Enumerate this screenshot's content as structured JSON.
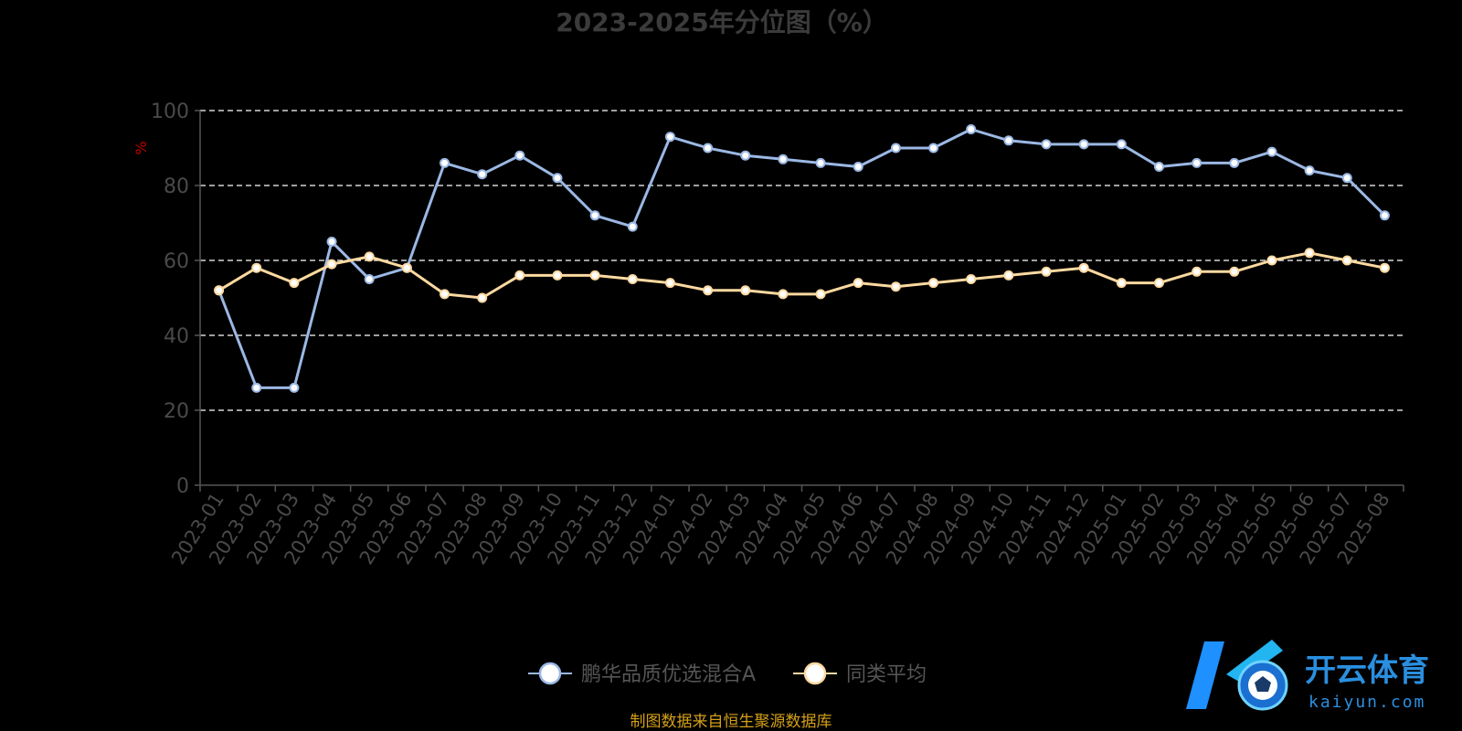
{
  "chart_data": {
    "type": "line",
    "title": "2023-2025年分位图（%）",
    "ylabel": "%",
    "xlabel": "",
    "ylim": [
      0,
      100
    ],
    "yticks": [
      0,
      20,
      40,
      60,
      80,
      100
    ],
    "grid": true,
    "legend_position": "bottom-center",
    "categories": [
      "2023-01",
      "2023-02",
      "2023-03",
      "2023-04",
      "2023-05",
      "2023-06",
      "2023-07",
      "2023-08",
      "2023-09",
      "2023-10",
      "2023-11",
      "2023-12",
      "2024-01",
      "2024-02",
      "2024-03",
      "2024-04",
      "2024-05",
      "2024-06",
      "2024-07",
      "2024-08",
      "2024-09",
      "2024-10",
      "2024-11",
      "2024-12",
      "2025-01",
      "2025-02",
      "2025-03",
      "2025-04",
      "2025-05",
      "2025-06",
      "2025-07",
      "2025-08"
    ],
    "series": [
      {
        "name": "鹏华品质优选混合A",
        "color": "#9bb8e4",
        "values": [
          52,
          26,
          26,
          65,
          55,
          58,
          86,
          83,
          88,
          82,
          72,
          69,
          93,
          90,
          88,
          87,
          86,
          85,
          90,
          90,
          95,
          92,
          91,
          91,
          91,
          85,
          86,
          86,
          89,
          84,
          82,
          72
        ]
      },
      {
        "name": "同类平均",
        "color": "#fcd9a0",
        "values": [
          52,
          58,
          54,
          59,
          61,
          58,
          51,
          50,
          56,
          56,
          56,
          55,
          54,
          52,
          52,
          51,
          51,
          54,
          53,
          54,
          55,
          56,
          57,
          58,
          54,
          54,
          57,
          57,
          60,
          62,
          60,
          58
        ]
      }
    ]
  },
  "footer": {
    "source": "制图数据来自恒生聚源数据库"
  },
  "watermark": {
    "brand": "开云体育",
    "domain": "kaiyun.com"
  }
}
